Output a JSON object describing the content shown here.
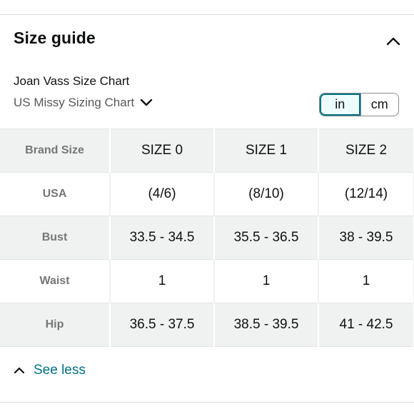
{
  "panel": {
    "title": "Size guide",
    "brand_chart": "Joan Vass Size Chart",
    "sizing_chart_selected": "US Missy Sizing Chart",
    "units": {
      "selected": "in",
      "options": [
        "in",
        "cm"
      ]
    },
    "see_less_label": "See less"
  },
  "table": {
    "corner_label": "Brand Size",
    "columns": [
      "SIZE 0",
      "SIZE 1",
      "SIZE 2"
    ],
    "rows": [
      {
        "label": "USA",
        "values": [
          "(4/6)",
          "(8/10)",
          "(12/14)"
        ]
      },
      {
        "label": "Bust",
        "values": [
          "33.5 - 34.5",
          "35.5 - 36.5",
          "38 - 39.5"
        ]
      },
      {
        "label": "Waist",
        "values": [
          "1",
          "1",
          "1"
        ]
      },
      {
        "label": "Hip",
        "values": [
          "36.5 - 37.5",
          "38.5 - 39.5",
          "41 - 42.5"
        ]
      }
    ]
  },
  "icons": {
    "collapse": "chevron-up-icon",
    "dropdown": "chevron-down-icon",
    "see_less": "chevron-up-icon"
  },
  "colors": {
    "link": "#007185",
    "active_unit_bg": "#edfdff",
    "stripe": "#f0f2f2",
    "muted_text": "#565959",
    "row_label": "#767676"
  }
}
